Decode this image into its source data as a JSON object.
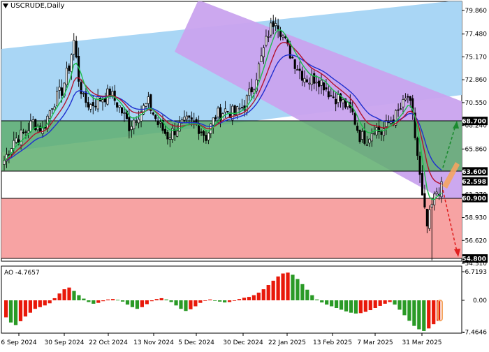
{
  "header": {
    "symbol_title": "USCRUDE,Daily",
    "ao_title": "AO -4.7657"
  },
  "price_axis": {
    "labels": [
      "79.860",
      "77.480",
      "75.170",
      "72.860",
      "70.550",
      "68.240",
      "65.860",
      "61.270",
      "58.930",
      "56.620",
      "54.310"
    ]
  },
  "level_labels": [
    {
      "text": "68.700",
      "value": 68.7,
      "style": "dark"
    },
    {
      "text": "63.600",
      "value": 63.6,
      "style": "dark"
    },
    {
      "text": "62.598",
      "value": 62.598,
      "style": "dark"
    },
    {
      "text": "60.900",
      "value": 60.9,
      "style": "dark"
    },
    {
      "text": "54.800",
      "value": 54.8,
      "style": "dark"
    }
  ],
  "ao_axis": {
    "labels": [
      "6.7193",
      "0.00",
      "-7.4646"
    ]
  },
  "date_axis": {
    "labels": [
      "6 Sep 2024",
      "30 Sep 2024",
      "22 Oct 2024",
      "13 Nov 2024",
      "5 Dec 2024",
      "30 Dec 2024",
      "22 Jan 2025",
      "13 Feb 2025",
      "7 Mar 2025",
      "31 Mar 2025"
    ]
  },
  "chart_data": {
    "type": "candlestick",
    "symbol": "USCRUDE",
    "timeframe": "Daily",
    "ylim": [
      54.31,
      80.2
    ],
    "zones": [
      {
        "name": "buy-zone",
        "from": 63.6,
        "to": 68.7,
        "color": "#5fae6e"
      },
      {
        "name": "sell-zone",
        "from": 54.8,
        "to": 60.9,
        "color": "#f7a3a3"
      }
    ],
    "channels": [
      {
        "name": "ascending-channel",
        "color": "#a9d6f5"
      },
      {
        "name": "descending-channel",
        "color": "#c9a3ee"
      }
    ],
    "moving_averages": [
      {
        "color": "#1f2fcf"
      },
      {
        "color": "#b3122e"
      },
      {
        "color": "#1bbf4a"
      }
    ],
    "forecasts": [
      {
        "direction": "up",
        "target": 68.7,
        "color": "#1a8a2e"
      },
      {
        "direction": "down",
        "target": 54.8,
        "color": "#e02020"
      }
    ],
    "price_path": [
      [
        0,
        64.7
      ],
      [
        4,
        66.8
      ],
      [
        8,
        67.4
      ],
      [
        12,
        68.6
      ],
      [
        16,
        67.8
      ],
      [
        20,
        70.4
      ],
      [
        24,
        71.8
      ],
      [
        27,
        74.2
      ],
      [
        29,
        76.8
      ],
      [
        31,
        73.0
      ],
      [
        33,
        70.8
      ],
      [
        36,
        70.3
      ],
      [
        40,
        70.9
      ],
      [
        44,
        71.5
      ],
      [
        48,
        70.1
      ],
      [
        52,
        68.2
      ],
      [
        56,
        69.5
      ],
      [
        60,
        70.5
      ],
      [
        64,
        68.4
      ],
      [
        68,
        67.2
      ],
      [
        72,
        68.0
      ],
      [
        76,
        68.6
      ],
      [
        80,
        68.4
      ],
      [
        84,
        67.1
      ],
      [
        88,
        69.2
      ],
      [
        92,
        69.8
      ],
      [
        96,
        69.4
      ],
      [
        100,
        70.3
      ],
      [
        104,
        72.5
      ],
      [
        107,
        75.0
      ],
      [
        110,
        77.6
      ],
      [
        113,
        79.2
      ],
      [
        115,
        77.9
      ],
      [
        118,
        76.0
      ],
      [
        121,
        74.6
      ],
      [
        124,
        73.4
      ],
      [
        127,
        72.8
      ],
      [
        130,
        73.1
      ],
      [
        133,
        72.4
      ],
      [
        136,
        71.3
      ],
      [
        139,
        71.0
      ],
      [
        142,
        70.3
      ],
      [
        145,
        69.4
      ],
      [
        148,
        67.2
      ],
      [
        151,
        66.9
      ],
      [
        154,
        68.1
      ],
      [
        157,
        67.5
      ],
      [
        160,
        68.5
      ],
      [
        163,
        69.2
      ],
      [
        166,
        70.3
      ],
      [
        168,
        71.2
      ],
      [
        170,
        69.0
      ],
      [
        172,
        65.2
      ],
      [
        174,
        60.8
      ],
      [
        176,
        58.0
      ],
      [
        178,
        60.1
      ],
      [
        180,
        61.6
      ],
      [
        182,
        61.9
      ]
    ],
    "ao_values": [
      -4.0,
      -5.2,
      -5.8,
      -4.9,
      -3.8,
      -2.9,
      -2.0,
      -1.6,
      -1.2,
      -0.7,
      0.5,
      1.6,
      2.6,
      3.0,
      2.2,
      1.2,
      0.4,
      -0.4,
      -0.8,
      -0.6,
      -0.2,
      0.2,
      0.3,
      0.1,
      -0.3,
      -1.0,
      -1.6,
      -2.0,
      -1.6,
      -0.9,
      -0.2,
      0.3,
      0.5,
      0.2,
      -0.4,
      -1.2,
      -2.0,
      -2.5,
      -2.1,
      -1.4,
      -0.6,
      -0.1,
      0.2,
      0.0,
      -0.3,
      -0.5,
      -0.4,
      -0.1,
      0.3,
      0.6,
      0.8,
      1.2,
      1.8,
      2.6,
      3.6,
      4.6,
      5.6,
      6.3,
      6.5,
      6.0,
      5.0,
      3.8,
      2.5,
      1.2,
      0.2,
      -0.5,
      -1.0,
      -1.4,
      -1.8,
      -2.2,
      -2.6,
      -2.9,
      -3.1,
      -3.0,
      -2.7,
      -2.3,
      -1.8,
      -1.3,
      -0.8,
      -0.4,
      -1.0,
      -2.2,
      -3.5,
      -4.8,
      -6.0,
      -6.8,
      -7.2,
      -6.6,
      -5.6,
      -4.8
    ]
  },
  "colors": {
    "buy_zone": "#5fae6e",
    "sell_zone": "#f7a3a3",
    "channel_up": "#a9d6f5",
    "channel_down": "#c9a3ee",
    "ma_blue": "#1f2fcf",
    "ma_red": "#b3122e",
    "ma_green": "#1bbf4a",
    "ao_up": "#e8190a",
    "ao_down": "#2a9a26"
  }
}
